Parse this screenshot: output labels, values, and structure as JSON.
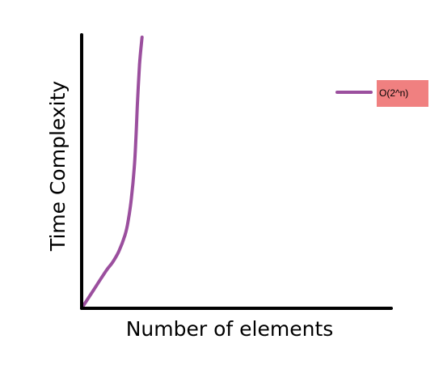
{
  "chart_data": {
    "type": "line",
    "title": "",
    "xlabel": "Number of elements",
    "ylabel": "Time Complexity",
    "grid": false,
    "legend_position": "top-right",
    "series": [
      {
        "name": "O(2^n)",
        "color": "#9b4f9e",
        "x": [
          0,
          4,
          8,
          10,
          12,
          14,
          15,
          16,
          17,
          17.5,
          18,
          18.7,
          19.5
        ],
        "y": [
          0,
          7,
          14,
          17,
          21,
          27,
          32,
          40,
          52,
          62,
          75,
          90,
          100
        ]
      }
    ],
    "xlim": [
      0,
      100
    ],
    "ylim": [
      0,
      100
    ]
  },
  "colors": {
    "axis": "#000000",
    "legend_box": "#f08080"
  }
}
